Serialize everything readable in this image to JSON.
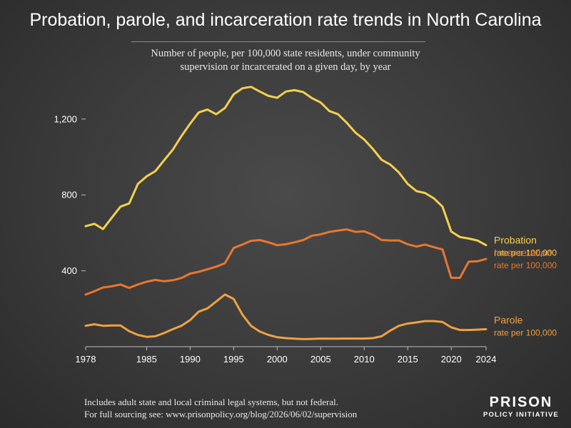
{
  "title": "Probation, parole, and incarceration rate trends in North Carolina",
  "subtitle_line1": "Number of people, per 100,000 state residents, under community",
  "subtitle_line2": "supervision or incarcerated on a given day, by year",
  "footnote_line1": "Includes adult state and local criminal legal systems, but not federal.",
  "footnote_line2": "For full sourcing see: www.prisonpolicy.org/blog/2026/06/02/supervision",
  "logo": {
    "line1": "PRISON",
    "line2": "POLICY INITIATIVE"
  },
  "colors": {
    "probation": "#f5d04a",
    "incarceration": "#e9762f",
    "parole": "#f0a140",
    "tick_text": "#ffffff",
    "grid": "#5a5a5a"
  },
  "chart_data": {
    "type": "line",
    "title": "Probation, parole, and incarceration rate trends in North Carolina",
    "xlabel": "",
    "ylabel": "",
    "xlim": [
      1978,
      2024
    ],
    "ylim": [
      0,
      1380
    ],
    "x_ticks": [
      1978,
      1985,
      1990,
      1995,
      2000,
      2005,
      2010,
      2015,
      2020,
      2024
    ],
    "y_ticks": [
      400,
      800,
      1200
    ],
    "y_tick_labels": [
      "400",
      "800",
      "1,200"
    ],
    "grid": false,
    "years": [
      1978,
      1979,
      1980,
      1981,
      1982,
      1983,
      1984,
      1985,
      1986,
      1987,
      1988,
      1989,
      1990,
      1991,
      1992,
      1993,
      1994,
      1995,
      1996,
      1997,
      1998,
      1999,
      2000,
      2001,
      2002,
      2003,
      2004,
      2005,
      2006,
      2007,
      2008,
      2009,
      2010,
      2011,
      2012,
      2013,
      2014,
      2015,
      2016,
      2017,
      2018,
      2019,
      2020,
      2021,
      2022,
      2023,
      2024
    ],
    "series": [
      {
        "name": "Probation",
        "sublabel": "rate per 100,000",
        "color_key": "probation",
        "values": [
          635,
          648,
          620,
          680,
          738,
          755,
          858,
          898,
          925,
          982,
          1038,
          1110,
          1175,
          1235,
          1250,
          1225,
          1258,
          1330,
          1362,
          1370,
          1345,
          1322,
          1312,
          1345,
          1352,
          1342,
          1310,
          1287,
          1242,
          1225,
          1180,
          1128,
          1092,
          1042,
          985,
          960,
          918,
          858,
          820,
          810,
          782,
          738,
          607,
          578,
          570,
          560,
          535
        ]
      },
      {
        "name": "Incarceration",
        "sublabel": "rate per 100,000",
        "color_key": "incarceration",
        "values": [
          275,
          292,
          312,
          318,
          328,
          310,
          328,
          342,
          352,
          345,
          350,
          362,
          385,
          395,
          408,
          422,
          440,
          520,
          538,
          558,
          562,
          550,
          535,
          540,
          550,
          562,
          585,
          592,
          605,
          612,
          618,
          605,
          608,
          590,
          562,
          560,
          560,
          540,
          528,
          538,
          525,
          512,
          363,
          363,
          448,
          450,
          462
        ]
      },
      {
        "name": "Parole",
        "sublabel": "rate per 100,000",
        "color_key": "parole",
        "values": [
          110,
          118,
          110,
          112,
          112,
          82,
          62,
          52,
          55,
          72,
          92,
          110,
          140,
          185,
          202,
          238,
          275,
          252,
          170,
          110,
          80,
          62,
          50,
          45,
          42,
          40,
          41,
          43,
          42,
          42,
          43,
          43,
          43,
          45,
          55,
          85,
          110,
          122,
          128,
          135,
          135,
          130,
          102,
          88,
          88,
          90,
          92
        ]
      }
    ]
  }
}
